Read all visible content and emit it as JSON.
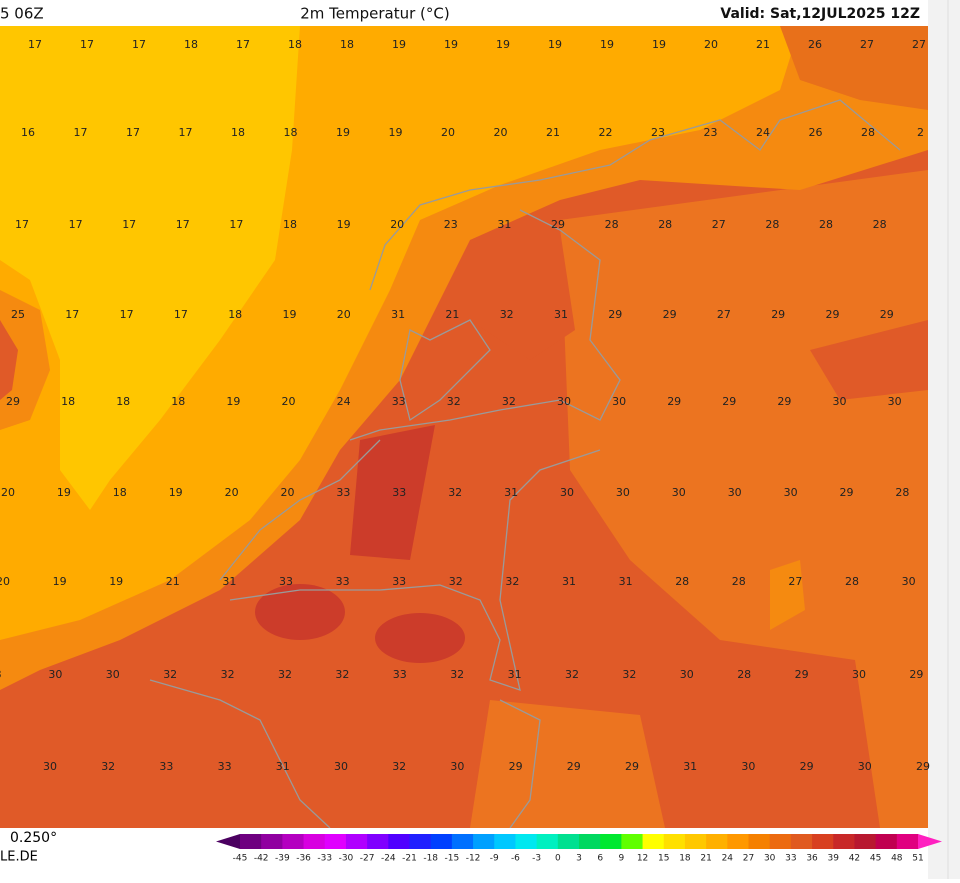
{
  "header": {
    "run": "5 06Z",
    "title": "2m Temperatur (°C)",
    "valid": "Valid: Sat,12JUL2025 12Z"
  },
  "grid": {
    "rows": [
      [
        17,
        17,
        17,
        18,
        17,
        18,
        18,
        19,
        19,
        19,
        19,
        19,
        19,
        20,
        21,
        26,
        27,
        27
      ],
      [
        16,
        17,
        17,
        17,
        18,
        18,
        19,
        19,
        20,
        20,
        21,
        22,
        23,
        23,
        24,
        26,
        28,
        2
      ],
      [
        17,
        17,
        17,
        17,
        17,
        18,
        19,
        20,
        23,
        31,
        29,
        28,
        28,
        27,
        28,
        28,
        28
      ],
      [
        25,
        17,
        17,
        17,
        18,
        19,
        20,
        31,
        21,
        32,
        31,
        29,
        29,
        27,
        29,
        29,
        29
      ],
      [
        29,
        18,
        18,
        18,
        19,
        20,
        24,
        33,
        32,
        32,
        30,
        30,
        29,
        29,
        29,
        30,
        30
      ],
      [
        20,
        19,
        18,
        19,
        20,
        20,
        33,
        33,
        32,
        31,
        30,
        30,
        30,
        30,
        30,
        29,
        28
      ],
      [
        20,
        19,
        19,
        21,
        31,
        33,
        33,
        33,
        32,
        32,
        31,
        31,
        28,
        28,
        27,
        28,
        30
      ],
      [
        8,
        30,
        30,
        32,
        32,
        32,
        32,
        33,
        32,
        31,
        32,
        32,
        30,
        28,
        29,
        30,
        29
      ],
      [
        30,
        32,
        33,
        33,
        31,
        30,
        32,
        30,
        29,
        29,
        29,
        31,
        30,
        29,
        30,
        29
      ]
    ]
  },
  "footer": {
    "resolution": "0.250°",
    "source": "LE.DE"
  },
  "colorbar": {
    "ticks": [
      -45,
      -42,
      -39,
      -36,
      -33,
      -30,
      -27,
      -24,
      -21,
      -18,
      -15,
      -12,
      -9,
      -6,
      -3,
      0,
      3,
      6,
      9,
      12,
      15,
      18,
      21,
      24,
      27,
      30,
      33,
      36,
      39,
      42,
      45,
      48,
      51
    ],
    "colors": [
      "#4b0060",
      "#6e0080",
      "#9000a0",
      "#b400c0",
      "#d800e0",
      "#e000ff",
      "#b000ff",
      "#8000ff",
      "#5000ff",
      "#2020ff",
      "#0040ff",
      "#0070ff",
      "#00a0ff",
      "#00c8ff",
      "#00e8f0",
      "#00f0c0",
      "#00e090",
      "#00d860",
      "#00e830",
      "#60ff00",
      "#ffff00",
      "#ffe000",
      "#ffc800",
      "#ffb000",
      "#ff9800",
      "#f58000",
      "#ec6a10",
      "#e05a20",
      "#d84020",
      "#c82828",
      "#b81830",
      "#c00050",
      "#e00080",
      "#ff20c0"
    ]
  }
}
